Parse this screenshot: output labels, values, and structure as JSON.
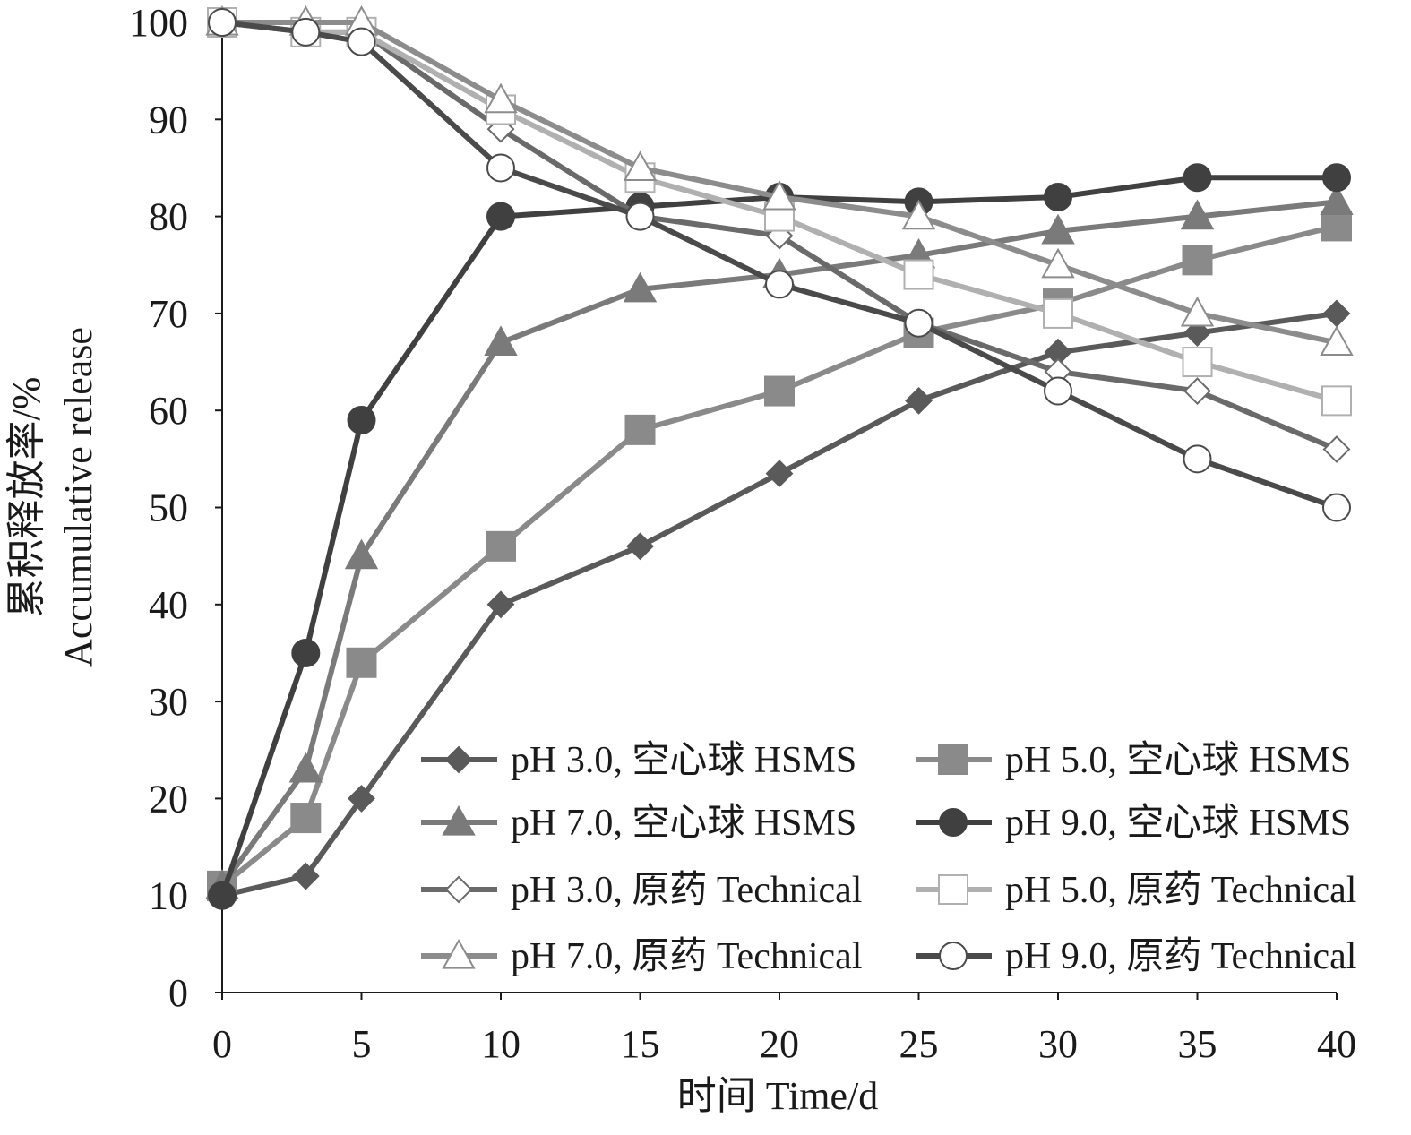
{
  "chart_data": {
    "type": "line",
    "title": "",
    "xlabel": "时间 Time/d",
    "ylabel": [
      "累积释放率/%",
      "Accumulative release"
    ],
    "xlim": [
      0,
      40
    ],
    "ylim": [
      0,
      100
    ],
    "xticks": [
      0,
      5,
      10,
      15,
      20,
      25,
      30,
      35,
      40
    ],
    "yticks": [
      0,
      10,
      20,
      30,
      40,
      50,
      60,
      70,
      80,
      90,
      100
    ],
    "grid": false,
    "legend_position": "bottom-right",
    "x": [
      0,
      3,
      5,
      10,
      15,
      20,
      25,
      30,
      35,
      40
    ],
    "series": [
      {
        "name": "pH 3.0, 空心球 HSMS",
        "marker": "diamond-filled",
        "color": "#5a5a5a",
        "values": [
          10,
          12,
          20,
          40,
          46,
          53.5,
          61,
          66,
          68,
          70
        ]
      },
      {
        "name": "pH 5.0, 空心球 HSMS",
        "marker": "square-filled",
        "color": "#8a8a8a",
        "values": [
          11,
          18,
          34,
          46,
          58,
          62,
          68,
          71,
          75.5,
          79
        ]
      },
      {
        "name": "pH 7.0, 空心球 HSMS",
        "marker": "triangle-filled",
        "color": "#7a7a7a",
        "values": [
          11,
          23,
          45,
          67,
          72.5,
          74,
          76,
          78.5,
          80,
          81.5
        ]
      },
      {
        "name": "pH 9.0, 空心球 HSMS",
        "marker": "circle-filled",
        "color": "#404040",
        "values": [
          10,
          35,
          59,
          80,
          81,
          82,
          81.5,
          82,
          84,
          84
        ]
      },
      {
        "name": "pH 3.0, 原药 Technical",
        "marker": "diamond-open",
        "color": "#6a6a6a",
        "values": [
          100,
          99,
          99,
          89,
          80,
          78,
          69,
          64,
          62,
          56
        ]
      },
      {
        "name": "pH 5.0, 原药 Technical",
        "marker": "square-open",
        "color": "#b0b0b0",
        "values": [
          100,
          99,
          99,
          91,
          84,
          80,
          74,
          70,
          65,
          61
        ]
      },
      {
        "name": "pH 7.0, 原药 Technical",
        "marker": "triangle-open",
        "color": "#8c8c8c",
        "values": [
          100,
          100,
          100,
          92,
          85,
          82,
          80,
          75,
          70,
          67
        ]
      },
      {
        "name": "pH 9.0, 原药 Technical",
        "marker": "circle-open",
        "color": "#4a4a4a",
        "values": [
          100,
          99,
          98,
          85,
          80,
          73,
          69,
          62,
          55,
          50
        ]
      }
    ]
  }
}
